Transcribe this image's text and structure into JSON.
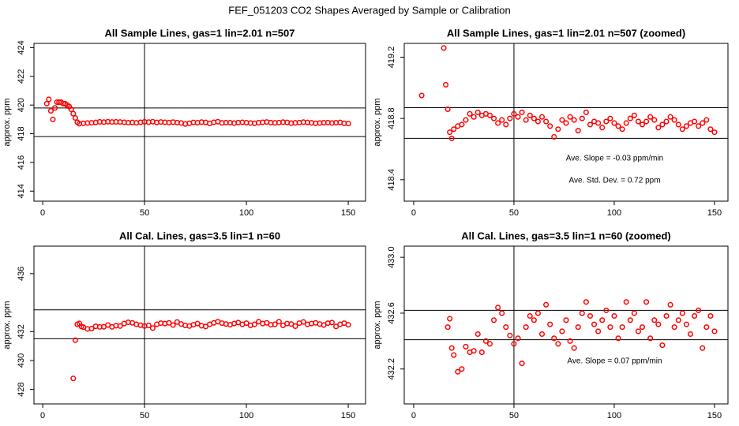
{
  "title": "FEF_051203  CO2 Shapes Averaged by Sample or Calibration",
  "chart_data": [
    {
      "type": "scatter",
      "title": "All Sample Lines, gas=1 lin=2.01 n=507",
      "y_label": "approx. ppm",
      "color": "#ff0000",
      "xlim": [
        -4.3,
        158.5
      ],
      "xticks": [
        0,
        50,
        100,
        150
      ],
      "ylim": [
        413.3,
        424.3
      ],
      "yticks": [
        414,
        416,
        418,
        420,
        422,
        424
      ],
      "hlines": [
        419.8,
        417.8
      ],
      "vlines": [
        50
      ],
      "annotations": [],
      "x": [
        2,
        3,
        4,
        5,
        6,
        7,
        8,
        9,
        10,
        11,
        12,
        13,
        14,
        15,
        16,
        17,
        18,
        20,
        22,
        24,
        26,
        28,
        30,
        32,
        34,
        36,
        38,
        40,
        42,
        44,
        46,
        48,
        50,
        52,
        54,
        56,
        58,
        60,
        62,
        64,
        66,
        68,
        70,
        72,
        74,
        76,
        78,
        80,
        82,
        84,
        86,
        88,
        90,
        92,
        94,
        96,
        98,
        100,
        102,
        104,
        106,
        108,
        110,
        112,
        114,
        116,
        118,
        120,
        122,
        124,
        126,
        128,
        130,
        132,
        134,
        136,
        138,
        140,
        142,
        144,
        146,
        148,
        150
      ],
      "values": [
        420.1,
        420.4,
        419.6,
        419.0,
        419.8,
        420.2,
        420.2,
        420.2,
        420.1,
        420.1,
        420.0,
        419.9,
        419.7,
        419.4,
        419.1,
        418.8,
        418.7,
        418.73,
        418.75,
        418.76,
        418.79,
        418.83,
        418.81,
        418.84,
        418.82,
        418.83,
        418.82,
        418.8,
        418.77,
        418.79,
        418.76,
        418.8,
        418.83,
        418.81,
        418.84,
        418.79,
        418.82,
        418.8,
        418.78,
        418.81,
        418.78,
        418.75,
        418.68,
        418.73,
        418.79,
        418.77,
        418.81,
        418.79,
        418.72,
        418.8,
        418.84,
        418.76,
        418.78,
        418.77,
        418.74,
        418.78,
        418.8,
        418.77,
        418.75,
        418.73,
        418.77,
        418.8,
        418.82,
        418.78,
        418.76,
        418.78,
        418.81,
        418.79,
        418.74,
        418.76,
        418.78,
        418.81,
        418.79,
        418.76,
        418.73,
        418.75,
        418.77,
        418.78,
        418.75,
        418.77,
        418.79,
        418.73,
        418.71
      ]
    },
    {
      "type": "scatter",
      "title": "All Sample Lines, gas=1 lin=2.01 n=507 (zoomed)",
      "y_label": "approx. ppm",
      "color": "#ff0000",
      "xlim": [
        -4.7,
        156.7
      ],
      "xticks": [
        0,
        50,
        100,
        150
      ],
      "ylim": [
        418.26,
        419.29
      ],
      "yticks": [
        418.4,
        418.8,
        419.2
      ],
      "hlines": [
        418.87,
        418.67
      ],
      "vlines": [
        50
      ],
      "annotations": [
        "Ave. Slope =  -0.03  ppm/min",
        "Ave. Std. Dev. =  0.72  ppm"
      ],
      "x": [
        4,
        15,
        16,
        17,
        18,
        19,
        20,
        22,
        24,
        26,
        28,
        30,
        32,
        34,
        36,
        38,
        40,
        42,
        44,
        46,
        48,
        50,
        52,
        54,
        56,
        58,
        60,
        62,
        64,
        66,
        68,
        70,
        72,
        74,
        76,
        78,
        80,
        82,
        84,
        86,
        88,
        90,
        92,
        94,
        96,
        98,
        100,
        102,
        104,
        106,
        108,
        110,
        112,
        114,
        116,
        118,
        120,
        122,
        124,
        126,
        128,
        130,
        132,
        134,
        136,
        138,
        140,
        142,
        144,
        146,
        148,
        150
      ],
      "values": [
        418.95,
        419.26,
        419.02,
        418.86,
        418.71,
        418.67,
        418.73,
        418.75,
        418.76,
        418.79,
        418.83,
        418.81,
        418.84,
        418.82,
        418.83,
        418.82,
        418.8,
        418.77,
        418.79,
        418.76,
        418.8,
        418.83,
        418.81,
        418.84,
        418.79,
        418.82,
        418.8,
        418.78,
        418.81,
        418.78,
        418.75,
        418.68,
        418.73,
        418.79,
        418.77,
        418.81,
        418.79,
        418.72,
        418.8,
        418.84,
        418.76,
        418.78,
        418.77,
        418.74,
        418.78,
        418.8,
        418.77,
        418.75,
        418.73,
        418.77,
        418.8,
        418.82,
        418.78,
        418.76,
        418.78,
        418.81,
        418.79,
        418.74,
        418.76,
        418.78,
        418.81,
        418.79,
        418.76,
        418.73,
        418.75,
        418.77,
        418.78,
        418.75,
        418.77,
        418.79,
        418.73,
        418.71
      ]
    },
    {
      "type": "scatter",
      "title": "All Cal. Lines, gas=3.5 lin=1 n=60",
      "y_label": "approx. ppm",
      "color": "#ff0000",
      "xlim": [
        -4.3,
        158.5
      ],
      "xticks": [
        0,
        50,
        100,
        150
      ],
      "ylim": [
        427.0,
        437.9
      ],
      "yticks": [
        428,
        430,
        432,
        436
      ],
      "hlines": [
        433.5,
        431.5
      ],
      "vlines": [
        50
      ],
      "annotations": [],
      "x": [
        15,
        16,
        17,
        18,
        19,
        20,
        22,
        24,
        26,
        28,
        30,
        32,
        34,
        36,
        38,
        40,
        42,
        44,
        46,
        48,
        50,
        52,
        54,
        56,
        58,
        60,
        62,
        64,
        66,
        68,
        70,
        72,
        74,
        76,
        78,
        80,
        82,
        84,
        86,
        88,
        90,
        92,
        94,
        96,
        98,
        100,
        102,
        104,
        106,
        108,
        110,
        112,
        114,
        116,
        118,
        120,
        122,
        124,
        126,
        128,
        130,
        132,
        134,
        136,
        138,
        140,
        142,
        144,
        146,
        148,
        150
      ],
      "values": [
        428.76,
        431.4,
        432.5,
        432.56,
        432.35,
        432.3,
        432.18,
        432.2,
        432.36,
        432.32,
        432.33,
        432.45,
        432.32,
        432.4,
        432.38,
        432.55,
        432.64,
        432.6,
        432.5,
        432.44,
        432.38,
        432.42,
        432.24,
        432.5,
        432.58,
        432.55,
        432.6,
        432.45,
        432.66,
        432.52,
        432.42,
        432.38,
        432.47,
        432.55,
        432.4,
        432.35,
        432.5,
        432.6,
        432.68,
        432.58,
        432.52,
        432.47,
        432.55,
        432.62,
        432.5,
        432.58,
        432.42,
        432.5,
        432.68,
        432.55,
        432.6,
        432.47,
        432.5,
        432.68,
        432.42,
        432.55,
        432.52,
        432.37,
        432.58,
        432.66,
        432.5,
        432.55,
        432.6,
        432.52,
        432.45,
        432.58,
        432.62,
        432.35,
        432.5,
        432.58,
        432.47
      ]
    },
    {
      "type": "scatter",
      "title": "All Cal. Lines, gas=3.5 lin=1 n=60 (zoomed)",
      "y_label": "approx. ppm",
      "color": "#ff0000",
      "xlim": [
        -4.7,
        156.7
      ],
      "xticks": [
        0,
        50,
        100,
        150
      ],
      "ylim": [
        431.95,
        433.08
      ],
      "yticks": [
        432.2,
        432.6,
        {
          "value": 433,
          "label": "433.0"
        }
      ],
      "hlines": [
        432.62,
        432.41
      ],
      "vlines": [
        50
      ],
      "annotations": [
        "Ave. Slope =  0.07  ppm/min"
      ],
      "x": [
        17,
        18,
        19,
        20,
        22,
        24,
        26,
        28,
        30,
        32,
        34,
        36,
        38,
        40,
        42,
        44,
        46,
        48,
        50,
        52,
        54,
        56,
        58,
        60,
        62,
        64,
        66,
        68,
        70,
        72,
        74,
        76,
        78,
        80,
        82,
        84,
        86,
        88,
        90,
        92,
        94,
        96,
        98,
        100,
        102,
        104,
        106,
        108,
        110,
        112,
        114,
        116,
        118,
        120,
        122,
        124,
        126,
        128,
        130,
        132,
        134,
        136,
        138,
        140,
        142,
        144,
        146,
        148,
        150
      ],
      "values": [
        432.5,
        432.56,
        432.35,
        432.3,
        432.18,
        432.2,
        432.36,
        432.32,
        432.33,
        432.45,
        432.32,
        432.4,
        432.38,
        432.55,
        432.64,
        432.6,
        432.5,
        432.44,
        432.38,
        432.42,
        432.24,
        432.5,
        432.58,
        432.55,
        432.6,
        432.45,
        432.66,
        432.52,
        432.42,
        432.38,
        432.47,
        432.55,
        432.4,
        432.35,
        432.5,
        432.6,
        432.68,
        432.58,
        432.52,
        432.47,
        432.55,
        432.62,
        432.5,
        432.58,
        432.42,
        432.5,
        432.68,
        432.55,
        432.6,
        432.47,
        432.5,
        432.68,
        432.42,
        432.55,
        432.52,
        432.37,
        432.58,
        432.66,
        432.5,
        432.55,
        432.6,
        432.52,
        432.45,
        432.58,
        432.62,
        432.35,
        432.5,
        432.58,
        432.47
      ]
    }
  ]
}
